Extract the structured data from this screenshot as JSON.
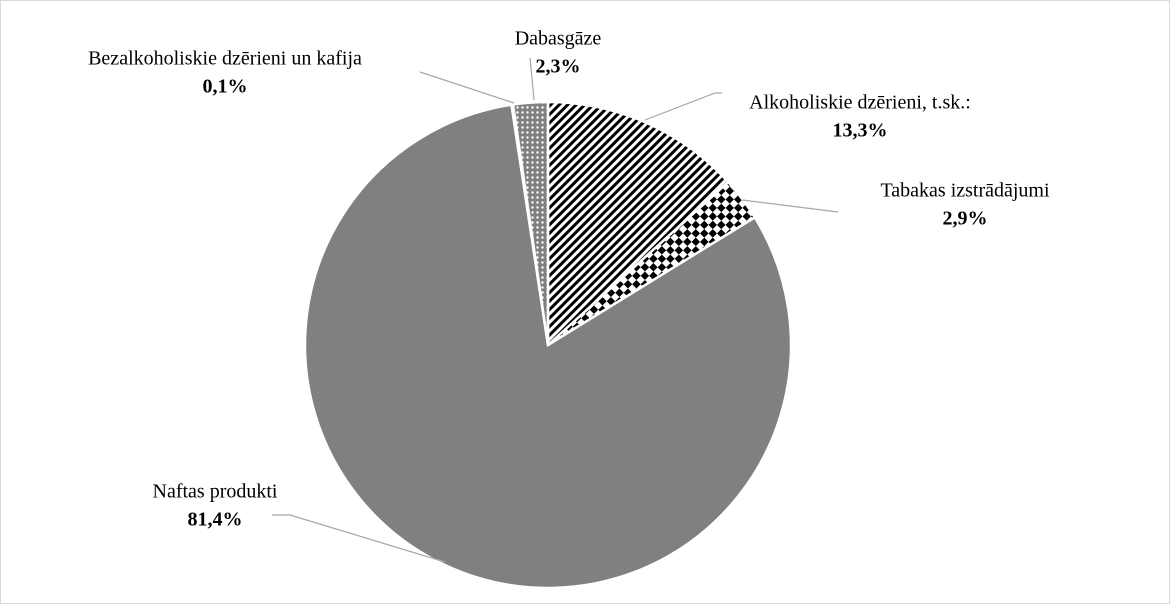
{
  "chart_data": {
    "type": "pie",
    "categories": [
      "Alkoholiskie dzērieni, t.sk.:",
      "Tabakas izstrādājumi",
      "Naftas produkti",
      "Bezalkoholiskie dzērieni un kafija",
      "Dabasgāze"
    ],
    "values": [
      13.3,
      2.9,
      81.4,
      0.1,
      2.3
    ],
    "value_labels": [
      "13,3%",
      "2,9%",
      "81,4%",
      "0,1%",
      "2,3%"
    ],
    "colors": [
      "#000000",
      "#000000",
      "#808080",
      "#808080",
      "#808080"
    ]
  }
}
